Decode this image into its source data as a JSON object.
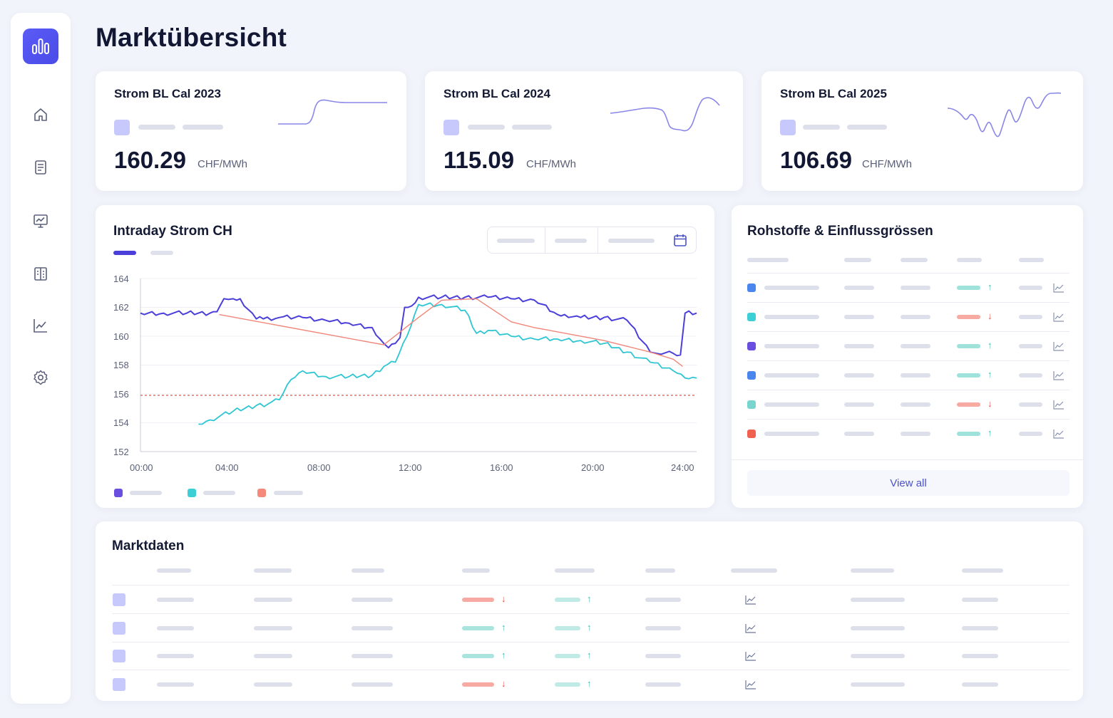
{
  "page": {
    "title": "Marktübersicht"
  },
  "sidebar": {
    "items": [
      {
        "icon": "home-icon"
      },
      {
        "icon": "document-icon"
      },
      {
        "icon": "monitor-chart-icon"
      },
      {
        "icon": "building-icon"
      },
      {
        "icon": "line-chart-icon"
      },
      {
        "icon": "gear-icon"
      }
    ]
  },
  "kpis": [
    {
      "title": "Strom BL Cal 2023",
      "value": "160.29",
      "unit": "CHF/MWh"
    },
    {
      "title": "Strom BL Cal 2024",
      "value": "115.09",
      "unit": "CHF/MWh"
    },
    {
      "title": "Strom BL Cal 2025",
      "value": "106.69",
      "unit": "CHF/MWh"
    }
  ],
  "intraday": {
    "title": "Intraday Strom CH",
    "colors": {
      "series1": "#4b3fd9",
      "series2": "#2fc6d3",
      "series3": "#f0867a",
      "reference": "#f06b5e"
    },
    "chart_data": {
      "type": "line",
      "x": [
        "00:00",
        "04:00",
        "08:00",
        "12:00",
        "16:00",
        "20:00",
        "24:00"
      ],
      "xlabel": "",
      "ylabel": "",
      "ylim": [
        152,
        164
      ],
      "yticks": [
        164,
        162,
        160,
        158,
        156,
        154,
        152
      ],
      "grid": true,
      "series": [
        {
          "x": [
            0,
            1,
            2,
            2.5,
            3,
            3.3,
            3.6,
            4,
            4.3,
            5,
            5.3,
            6,
            7,
            8,
            9,
            10,
            10.5,
            10.7,
            11,
            11.2,
            11.4,
            11.7,
            12,
            13,
            14,
            15,
            16,
            17,
            18,
            18.3,
            19,
            20,
            21,
            22,
            22.3,
            23,
            23.3,
            23.5,
            24
          ],
          "y": [
            161.6,
            161.6,
            161.6,
            161.6,
            161.6,
            161.7,
            162.6,
            162.6,
            162.6,
            161.2,
            161.2,
            161.3,
            161.3,
            161.1,
            160.9,
            160.6,
            159.5,
            159.2,
            159.5,
            159.9,
            162.0,
            162.1,
            162.7,
            162.7,
            162.7,
            162.7,
            162.6,
            162.5,
            161.5,
            161.5,
            161.3,
            161.3,
            161.1,
            158.9,
            158.8,
            158.8,
            158.7,
            161.6,
            161.6
          ]
        },
        {
          "x": [
            2.5,
            3,
            4,
            5,
            5.5,
            6,
            6.5,
            7,
            8,
            9,
            10,
            10.5,
            11,
            11.5,
            12,
            13,
            14,
            14.5,
            15,
            16,
            17,
            18,
            19,
            20,
            21,
            22,
            23,
            23.5,
            24
          ],
          "y": [
            153.9,
            154.2,
            154.8,
            155.2,
            155.3,
            155.6,
            157.0,
            157.6,
            157.2,
            157.2,
            157.3,
            157.9,
            158.2,
            160.0,
            162.2,
            162.2,
            161.8,
            160.2,
            160.4,
            160.0,
            159.8,
            159.8,
            159.7,
            159.5,
            158.9,
            158.2,
            157.6,
            157.1,
            157.1
          ]
        },
        {
          "x": [
            3.4,
            10.5,
            12,
            13,
            14.5,
            16,
            17,
            18,
            20,
            21,
            22,
            23,
            23.4
          ],
          "y": [
            161.5,
            159.4,
            161.3,
            162.5,
            162.6,
            161.0,
            160.6,
            160.3,
            159.7,
            159.3,
            158.9,
            158.4,
            157.9
          ]
        }
      ],
      "reference_line": 155.9
    }
  },
  "commodities": {
    "title": "Rohstoffe & Einflussgrössen",
    "rows": [
      {
        "color": "#4b86ef",
        "trend": "up"
      },
      {
        "color": "#3ccfd6",
        "trend": "down"
      },
      {
        "color": "#6a4ee0",
        "trend": "up"
      },
      {
        "color": "#4b86ef",
        "trend": "up"
      },
      {
        "color": "#79d6cf",
        "trend": "down"
      },
      {
        "color": "#f0614f",
        "trend": "up"
      }
    ],
    "view_all": "View all",
    "arrows": {
      "up": "↑",
      "down": "↓"
    }
  },
  "market_data": {
    "title": "Marktdaten",
    "rows": [
      {
        "col4": "down",
        "col5": "up"
      },
      {
        "col4": "up",
        "col5": "up"
      },
      {
        "col4": "up",
        "col5": "up"
      },
      {
        "col4": "down",
        "col5": "up"
      }
    ]
  }
}
